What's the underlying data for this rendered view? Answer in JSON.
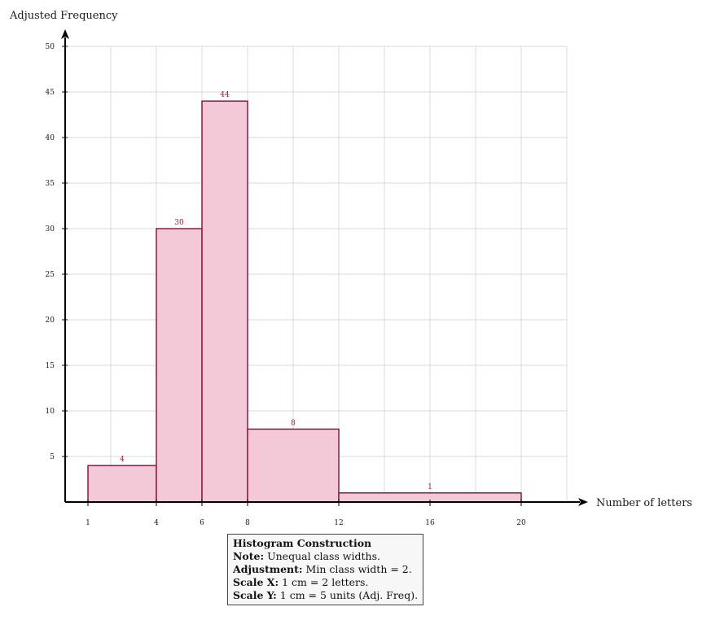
{
  "chart_data": {
    "type": "bar",
    "variant": "histogram-unequal-widths",
    "ylabel": "Adjusted Frequency",
    "xlabel": "Number of letters",
    "bins": [
      {
        "start": 1,
        "end": 4,
        "value": 4,
        "label": "4"
      },
      {
        "start": 4,
        "end": 6,
        "value": 30,
        "label": "30"
      },
      {
        "start": 6,
        "end": 8,
        "value": 44,
        "label": "44"
      },
      {
        "start": 8,
        "end": 12,
        "value": 8,
        "label": "8"
      },
      {
        "start": 12,
        "end": 20,
        "value": 1,
        "label": "1"
      }
    ],
    "xticks": [
      1,
      4,
      6,
      8,
      12,
      16,
      20
    ],
    "yticks": [
      5,
      10,
      15,
      20,
      25,
      30,
      35,
      40,
      45,
      50
    ],
    "xlim": [
      0,
      22
    ],
    "ylim": [
      0,
      50
    ],
    "grid": true,
    "colors": {
      "bar_fill": "#f3c9d8",
      "bar_stroke": "#8b1c3d",
      "grid": "#d9d9d9",
      "axis": "#000000"
    }
  },
  "note": {
    "title": "Histogram Construction",
    "rows": [
      {
        "key": "Note:",
        "text": "Unequal class widths."
      },
      {
        "key": "Adjustment:",
        "text": "Min class width = 2."
      },
      {
        "key": "Scale X:",
        "text": "1 cm = 2 letters."
      },
      {
        "key": "Scale Y:",
        "text": "1 cm = 5 units (Adj. Freq)."
      }
    ]
  }
}
